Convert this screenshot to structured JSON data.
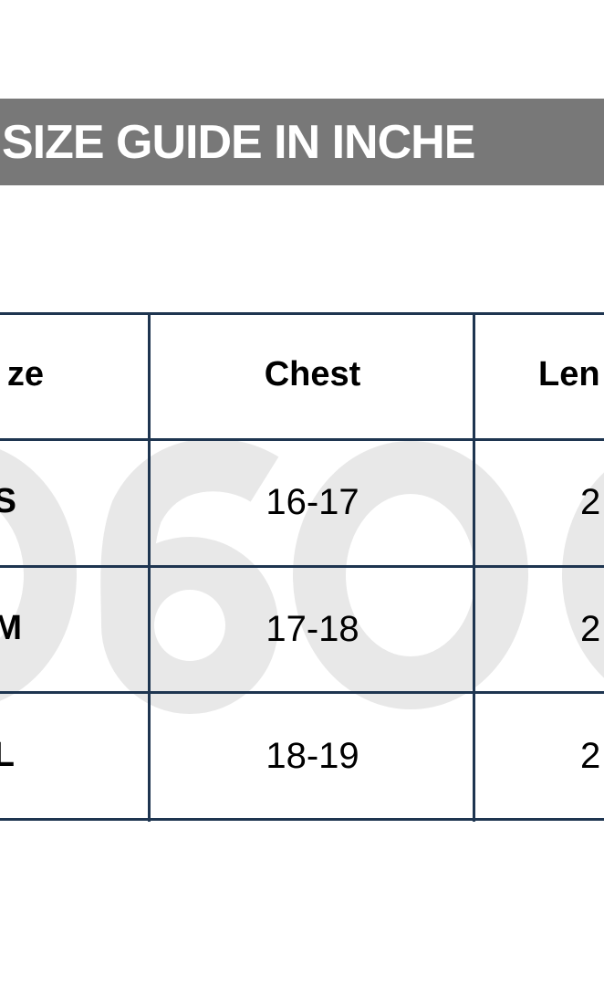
{
  "banner": {
    "title": "SIZE GUIDE IN INCHE"
  },
  "watermark": "0600",
  "table": {
    "headers": [
      "ze",
      "Chest",
      "Len"
    ],
    "rows": [
      {
        "size": "S",
        "chest": "16-17",
        "length": "2"
      },
      {
        "size": "M",
        "chest": "17-18",
        "length": "2"
      },
      {
        "size": "L",
        "chest": "18-19",
        "length": "2"
      }
    ]
  },
  "colors": {
    "banner": "#787878",
    "grid": "#1e3550",
    "watermark": "#e8e8e8"
  }
}
